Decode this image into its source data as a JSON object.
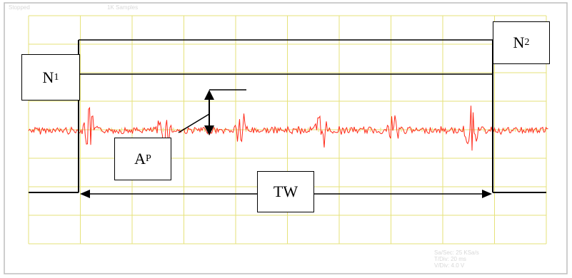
{
  "scope": {
    "status_left": "Stopped",
    "status_mid": "1K Samples",
    "readout": [
      "Sa/Sec: 25 KSa/s",
      "T/Div: 20 ms",
      "V/Div: 4.0 V"
    ],
    "grid_color": "#e6e27a",
    "background_color": "#ffffff",
    "gate_color": "#000000",
    "signal_color": "#ff2a1a"
  },
  "labels": {
    "n1": {
      "base": "N",
      "sub": "1"
    },
    "n2": {
      "base": "N",
      "sub": "2"
    },
    "ap": {
      "base": "A",
      "sub": "P"
    },
    "tw": {
      "text": "TW"
    }
  }
}
